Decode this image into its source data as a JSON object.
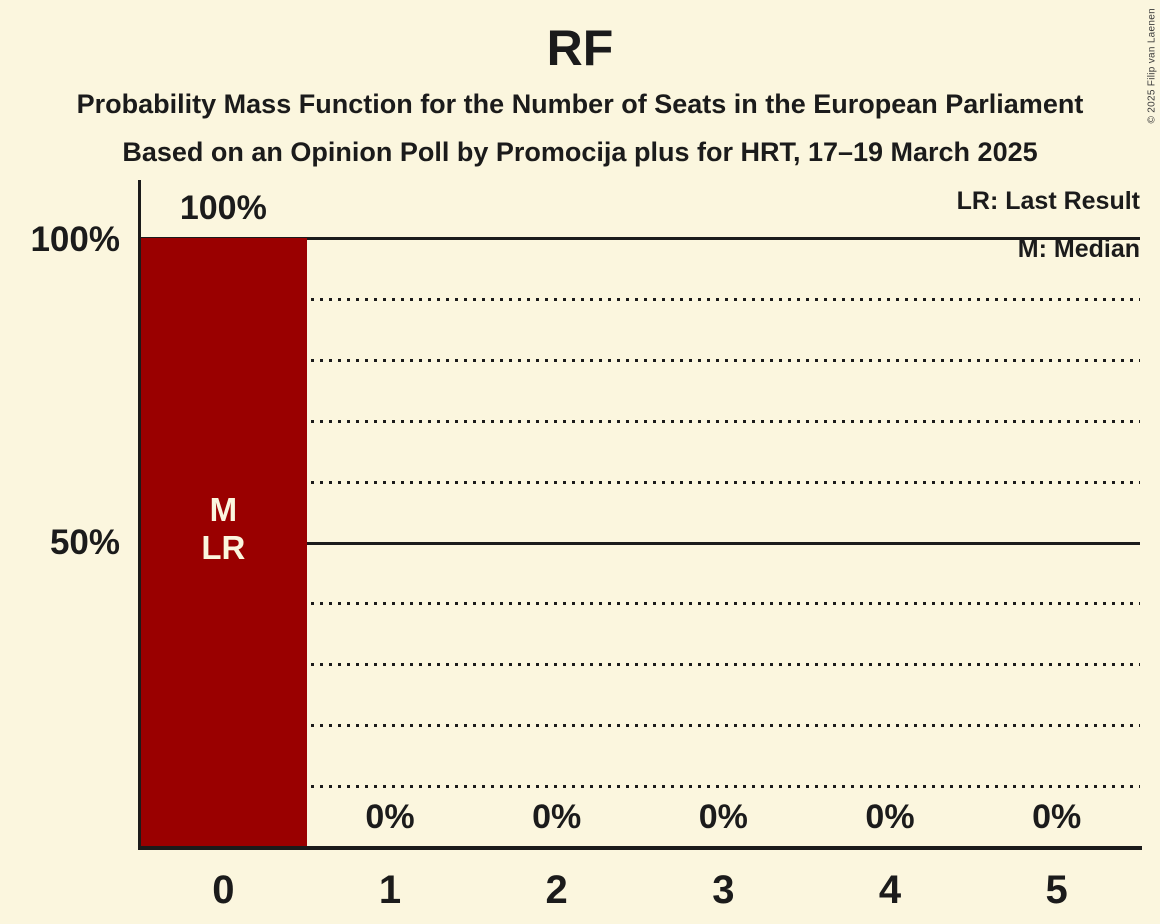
{
  "header": {
    "title": "RF",
    "subtitle1": "Probability Mass Function for the Number of Seats in the European Parliament",
    "subtitle2": "Based on an Opinion Poll by Promocija plus for HRT, 17–19 March 2025"
  },
  "copyright": "© 2025 Filip van Laenen",
  "colors": {
    "background": "#FBF6DE",
    "text": "#1B1B1B",
    "bar": "#9A0000",
    "bar_text": "#FBF6DE",
    "copyright_text": "#3A3A3A"
  },
  "chart_data": {
    "type": "bar",
    "title": "RF",
    "categories": [
      "0",
      "1",
      "2",
      "3",
      "4",
      "5"
    ],
    "values": [
      100,
      0,
      0,
      0,
      0,
      0
    ],
    "bar_labels": [
      "100%",
      "0%",
      "0%",
      "0%",
      "0%",
      "0%"
    ],
    "ylim": [
      0,
      100
    ],
    "ytick_labels": [
      {
        "value": 100,
        "label": "100%"
      },
      {
        "value": 50,
        "label": "50%"
      }
    ],
    "solid_gridlines": [
      100,
      50
    ],
    "dotted_gridlines": [
      90,
      80,
      70,
      60,
      40,
      30,
      20,
      10
    ],
    "legend": [
      "LR: Last Result",
      "M: Median"
    ],
    "legend_position": "top-right",
    "bar_annotations": [
      {
        "category_index": 0,
        "lines": [
          "M",
          "LR"
        ]
      }
    ]
  }
}
